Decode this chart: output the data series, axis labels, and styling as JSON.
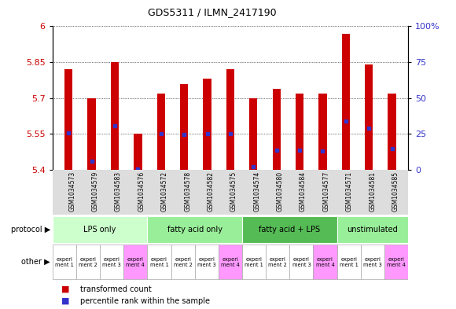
{
  "title": "GDS5311 / ILMN_2417190",
  "samples": [
    "GSM1034573",
    "GSM1034579",
    "GSM1034583",
    "GSM1034576",
    "GSM1034572",
    "GSM1034578",
    "GSM1034582",
    "GSM1034575",
    "GSM1034574",
    "GSM1034580",
    "GSM1034584",
    "GSM1034577",
    "GSM1034571",
    "GSM1034581",
    "GSM1034585"
  ],
  "red_values": [
    5.82,
    5.7,
    5.85,
    5.55,
    5.72,
    5.76,
    5.78,
    5.82,
    5.7,
    5.74,
    5.72,
    5.72,
    5.97,
    5.84,
    5.72
  ],
  "blue_values": [
    5.555,
    5.435,
    5.585,
    5.403,
    5.553,
    5.548,
    5.553,
    5.553,
    5.413,
    5.483,
    5.483,
    5.478,
    5.603,
    5.573,
    5.488
  ],
  "ymin": 5.4,
  "ymax": 6.0,
  "yticks_left": [
    5.4,
    5.55,
    5.7,
    5.85,
    6.0
  ],
  "ytick_labels_left": [
    "5.4",
    "5.55",
    "5.7",
    "5.85",
    "6"
  ],
  "yticks_right_vals": [
    0,
    25,
    50,
    75,
    100
  ],
  "ytick_labels_right": [
    "0",
    "25",
    "50",
    "75",
    "100%"
  ],
  "bar_color": "#cc0000",
  "dot_color": "#3333cc",
  "bar_width": 0.35,
  "protocols": [
    {
      "label": "LPS only",
      "count": 4,
      "color": "#ccffcc"
    },
    {
      "label": "fatty acid only",
      "count": 4,
      "color": "#99ee99"
    },
    {
      "label": "fatty acid + LPS",
      "count": 4,
      "color": "#55bb55"
    },
    {
      "label": "unstimulated",
      "count": 3,
      "color": "#99ee99"
    }
  ],
  "other_labels": [
    "experi\nment 1",
    "experi\nment 2",
    "experi\nment 3",
    "experi\nment 4",
    "experi\nment 1",
    "experi\nment 2",
    "experi\nment 3",
    "experi\nment 4",
    "experi\nment 1",
    "experi\nment 2",
    "experi\nment 3",
    "experi\nment 4",
    "experi\nment 1",
    "experi\nment 3",
    "experi\nment 4"
  ],
  "other_colors": [
    "#ffffff",
    "#ffffff",
    "#ffffff",
    "#ff99ff",
    "#ffffff",
    "#ffffff",
    "#ffffff",
    "#ff99ff",
    "#ffffff",
    "#ffffff",
    "#ffffff",
    "#ff99ff",
    "#ffffff",
    "#ffffff",
    "#ff99ff"
  ],
  "legend_red": "transformed count",
  "legend_blue": "percentile rank within the sample",
  "bg_color": "#ffffff",
  "left_axis_color": "#cc0000",
  "right_axis_color": "#3333cc",
  "xlabel_bg": "#dddddd",
  "grid_color": "#000000",
  "protocol_label": "protocol",
  "other_label": "other"
}
